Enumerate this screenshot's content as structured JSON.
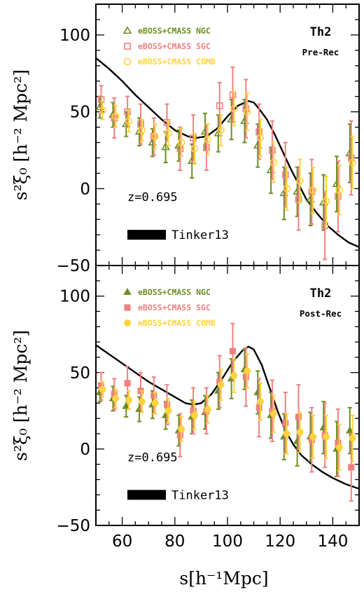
{
  "chart_data": [
    {
      "type": "scatter",
      "panel": "top",
      "ylabel": "s²ξ₀ [h⁻² Mpc²]",
      "xlim": [
        50,
        150
      ],
      "ylim": [
        -50,
        120
      ],
      "x_ticks": [
        60,
        80,
        100,
        120,
        140
      ],
      "y_ticks": [
        -50,
        0,
        50,
        100
      ],
      "y_tick_labels": [
        "−50",
        "0",
        "50",
        "100"
      ],
      "grid": false,
      "legend_position": "top-center",
      "label_main": "Th2",
      "label_sub": "Pre-Rec",
      "redshift_label": "z=0.695",
      "band_label": "Tinker13",
      "model_curve": {
        "color": "#000000",
        "x": [
          50,
          55,
          60,
          65,
          70,
          75,
          80,
          85,
          88,
          92,
          96,
          100,
          104,
          108,
          110,
          112,
          115,
          118,
          121,
          124,
          127,
          130,
          134,
          138,
          142,
          146,
          150
        ],
        "y": [
          85,
          78,
          70,
          61,
          53,
          45,
          38,
          34,
          33,
          34,
          39,
          47,
          54,
          57,
          56,
          52,
          45,
          35,
          24,
          13,
          3,
          -7,
          -16,
          -24,
          -30,
          -35,
          -38
        ]
      },
      "series": [
        {
          "name": "eBOSS+CMASS NGC",
          "marker": "open-triangle",
          "color": "#6b8e23",
          "x": [
            52,
            57,
            62,
            67,
            72,
            77,
            82,
            87,
            92,
            97,
            102,
            107,
            112,
            117,
            122,
            127,
            132,
            137,
            142,
            147
          ],
          "y": [
            53,
            48,
            42,
            37,
            30,
            27,
            28,
            18,
            37,
            36,
            45,
            44,
            28,
            12,
            -3,
            -2,
            -7,
            -9,
            3,
            23
          ],
          "err": [
            7,
            8,
            8,
            9,
            9,
            10,
            10,
            11,
            12,
            12,
            13,
            14,
            14,
            15,
            17,
            16,
            17,
            18,
            18,
            19
          ]
        },
        {
          "name": "eBOSS+CMASS SGC",
          "marker": "open-square",
          "color": "#f08080",
          "x": [
            52,
            57,
            62,
            67,
            72,
            77,
            82,
            87,
            92,
            97,
            102,
            107,
            112,
            117,
            122,
            127,
            132,
            137,
            142,
            147
          ],
          "y": [
            58,
            46,
            50,
            42,
            34,
            43,
            26,
            33,
            27,
            54,
            61,
            52,
            37,
            25,
            9,
            -7,
            -2,
            -24,
            -5,
            20
          ],
          "err": [
            9,
            13,
            10,
            13,
            12,
            12,
            14,
            15,
            15,
            15,
            18,
            19,
            18,
            19,
            21,
            20,
            21,
            22,
            23,
            24
          ]
        },
        {
          "name": "eBOSS+CMASS COMB",
          "marker": "open-circle",
          "color": "#ffd23f",
          "x": [
            52,
            57,
            62,
            67,
            72,
            77,
            82,
            87,
            92,
            97,
            102,
            107,
            112,
            117,
            122,
            127,
            132,
            137,
            142,
            147
          ],
          "y": [
            51,
            47,
            44,
            38,
            34,
            36,
            30,
            26,
            32,
            38,
            52,
            50,
            33,
            17,
            0,
            5,
            -1,
            -8,
            -1,
            17
          ],
          "err": [
            6,
            7,
            7,
            7,
            8,
            8,
            9,
            10,
            10,
            10,
            11,
            12,
            12,
            13,
            14,
            14,
            15,
            16,
            16,
            17
          ]
        }
      ]
    },
    {
      "type": "scatter",
      "panel": "bottom",
      "xlabel": "s[h⁻¹Mpc]",
      "ylabel": "s²ξ₀ [h⁻² Mpc²]",
      "xlim": [
        50,
        150
      ],
      "ylim": [
        -50,
        120
      ],
      "x_ticks": [
        60,
        80,
        100,
        120,
        140
      ],
      "y_ticks": [
        -50,
        0,
        50,
        100
      ],
      "y_tick_labels": [
        "−50",
        "0",
        "50",
        "100"
      ],
      "grid": false,
      "legend_position": "top-center",
      "label_main": "Th2",
      "label_sub": "Post-Rec",
      "redshift_label": "z=0.695",
      "band_label": "Tinker13",
      "model_curve": {
        "color": "#000000",
        "x": [
          50,
          55,
          60,
          65,
          70,
          75,
          80,
          84,
          87,
          90,
          94,
          98,
          102,
          106,
          108,
          110,
          113,
          116,
          119,
          122,
          125,
          128,
          132,
          136,
          140,
          145,
          150
        ],
        "y": [
          68,
          62,
          56,
          50,
          44,
          39,
          34,
          30,
          29,
          30,
          36,
          46,
          57,
          65,
          67,
          65,
          55,
          40,
          25,
          12,
          3,
          -4,
          -10,
          -15,
          -19,
          -23,
          -26
        ]
      },
      "series": [
        {
          "name": "eBOSS+CMASS NGC",
          "marker": "filled-triangle",
          "color": "#6b8e23",
          "x": [
            52,
            57,
            62,
            67,
            72,
            77,
            82,
            87,
            92,
            97,
            102,
            107,
            112,
            117,
            122,
            127,
            132,
            137,
            142,
            147
          ],
          "y": [
            37,
            33,
            28,
            26,
            29,
            22,
            12,
            21,
            24,
            38,
            46,
            52,
            37,
            22,
            8,
            5,
            8,
            14,
            0,
            12
          ],
          "err": [
            6,
            8,
            7,
            8,
            9,
            9,
            10,
            11,
            11,
            12,
            13,
            13,
            14,
            15,
            15,
            16,
            16,
            17,
            18,
            15
          ]
        },
        {
          "name": "eBOSS+CMASS SGC",
          "marker": "filled-square",
          "color": "#f08080",
          "x": [
            52,
            57,
            62,
            67,
            72,
            77,
            82,
            87,
            92,
            97,
            102,
            107,
            112,
            117,
            122,
            127,
            132,
            137,
            142,
            147
          ],
          "y": [
            41,
            36,
            43,
            38,
            35,
            29,
            9,
            25,
            25,
            44,
            64,
            47,
            27,
            25,
            17,
            21,
            6,
            9,
            4,
            -12
          ],
          "err": [
            9,
            10,
            11,
            12,
            12,
            13,
            14,
            15,
            15,
            17,
            18,
            19,
            19,
            20,
            20,
            21,
            21,
            21,
            22,
            22
          ]
        },
        {
          "name": "eBOSS+CMASS COMB",
          "marker": "filled-circle",
          "color": "#ffd23f",
          "x": [
            52,
            57,
            62,
            67,
            72,
            77,
            82,
            87,
            92,
            97,
            102,
            107,
            112,
            117,
            122,
            127,
            132,
            137,
            142,
            147
          ],
          "y": [
            39,
            33,
            32,
            31,
            30,
            25,
            13,
            22,
            26,
            42,
            48,
            51,
            31,
            23,
            10,
            11,
            8,
            8,
            1,
            7
          ],
          "err": [
            5,
            6,
            6,
            7,
            7,
            8,
            8,
            9,
            9,
            10,
            11,
            11,
            12,
            12,
            13,
            13,
            14,
            14,
            15,
            15
          ]
        }
      ]
    }
  ]
}
